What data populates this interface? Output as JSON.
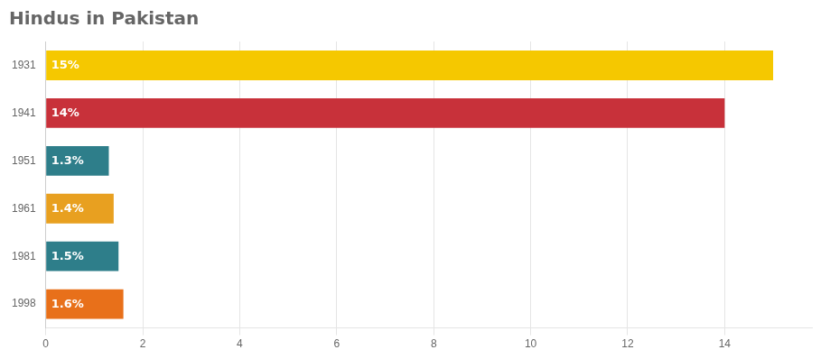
{
  "chart_data": {
    "type": "bar",
    "orientation": "horizontal",
    "title": "Hindus in Pakistan",
    "categories": [
      "1931",
      "1941",
      "1951",
      "1961",
      "1981",
      "1998"
    ],
    "values": [
      15,
      14,
      1.3,
      1.4,
      1.5,
      1.6
    ],
    "value_labels": [
      "15%",
      "14%",
      "1.3%",
      "1.4%",
      "1.5%",
      "1.6%"
    ],
    "data_labels": true,
    "colors": [
      "#F5C800",
      "#C8313A",
      "#2E7E8A",
      "#E8A020",
      "#2E7E8A",
      "#E8701A"
    ],
    "xlim": [
      0,
      15.8
    ],
    "xticks": [
      0,
      2,
      4,
      6,
      8,
      10,
      12,
      14
    ],
    "grid": true
  }
}
